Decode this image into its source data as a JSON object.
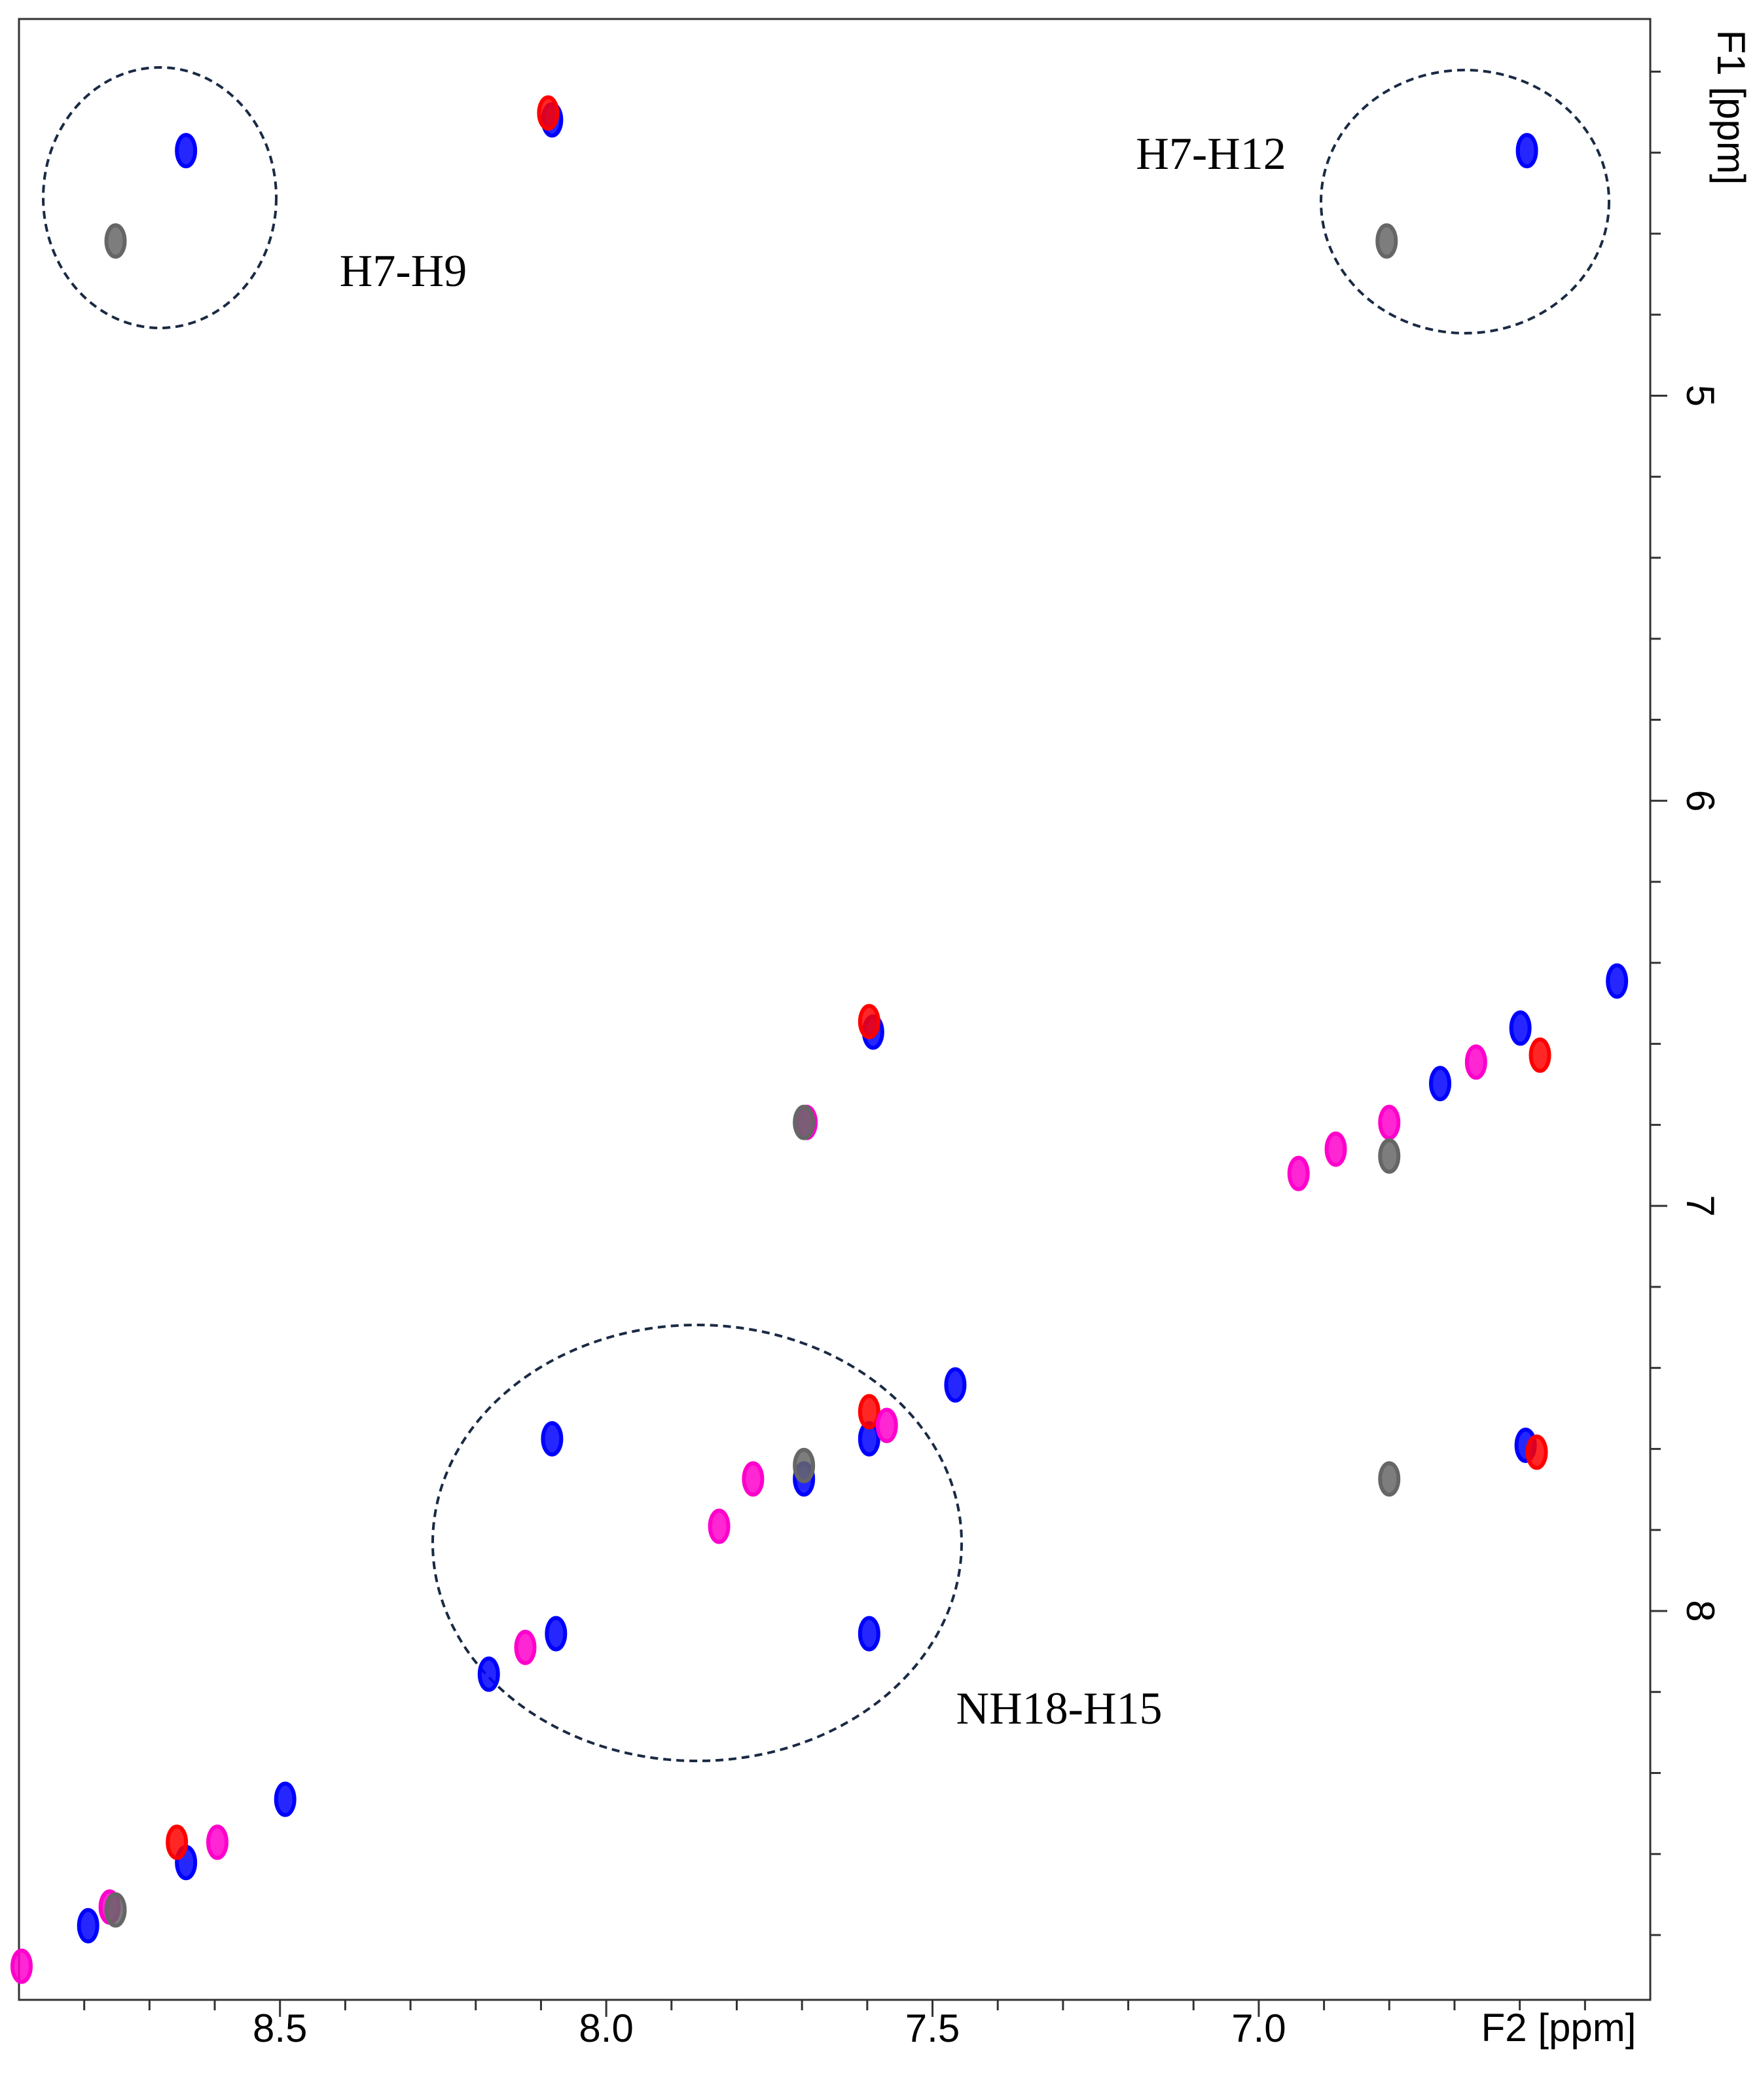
{
  "chart_data": {
    "type": "scatter",
    "xlabel": "F2 [ppm]",
    "ylabel": "F1 [ppm]",
    "xlim": [
      8.9,
      6.4
    ],
    "ylim": [
      8.96,
      4.07
    ],
    "xticks": [
      8.5,
      {
        "value": 8,
        "label": "8.0"
      },
      7.5,
      {
        "value": 7,
        "label": "7.0"
      }
    ],
    "yticks": [
      5,
      6,
      7,
      8
    ],
    "xminorticks": [
      8.8,
      8.7,
      8.6,
      8.4,
      8.3,
      8.2,
      8.1,
      7.9,
      7.8,
      7.7,
      7.6,
      7.4,
      7.3,
      7.2,
      7.1,
      6.9,
      6.8,
      6.7,
      6.6,
      6.5
    ],
    "yminorticks": [
      4.2,
      4.4,
      4.6,
      4.8,
      5.2,
      5.4,
      5.6,
      5.8,
      6.2,
      6.4,
      6.6,
      6.8,
      7.2,
      7.4,
      7.6,
      7.8,
      8.2,
      8.4,
      8.6,
      8.8
    ],
    "annotations": [
      "H7-H9",
      "H7-H12",
      "NH18-H15"
    ],
    "series": [
      {
        "color": "#0000ff",
        "x": [
          8.644,
          8.083,
          6.589,
          6.451,
          6.599,
          7.591,
          6.722,
          7.465,
          7.597,
          7.697,
          8.083,
          6.591,
          7.597,
          8.077,
          8.18,
          8.492,
          8.644,
          8.794
        ],
        "y": [
          4.395,
          4.319,
          4.395,
          6.445,
          6.561,
          6.571,
          6.698,
          7.442,
          7.575,
          7.674,
          7.575,
          7.591,
          8.056,
          8.056,
          8.156,
          8.465,
          8.621,
          8.777
        ]
      },
      {
        "color": "#ff0000",
        "x": [
          8.089,
          7.597,
          6.569,
          7.597,
          6.574,
          8.658
        ],
        "y": [
          4.302,
          6.545,
          6.628,
          7.508,
          7.608,
          8.571
        ]
      },
      {
        "color": "#ff00cc",
        "x": [
          7.693,
          6.8,
          6.882,
          6.939,
          6.667,
          7.57,
          7.775,
          7.827,
          8.124,
          8.596,
          8.761,
          8.896
        ],
        "y": [
          6.794,
          6.794,
          6.86,
          6.92,
          6.645,
          7.542,
          7.674,
          7.791,
          8.09,
          8.571,
          8.731,
          8.877
        ]
      },
      {
        "color": "#666666",
        "x": [
          8.752,
          6.804,
          7.697,
          6.8,
          7.697,
          6.8,
          8.752
        ],
        "y": [
          4.618,
          4.618,
          6.794,
          6.877,
          7.641,
          7.674,
          8.738
        ]
      }
    ]
  }
}
